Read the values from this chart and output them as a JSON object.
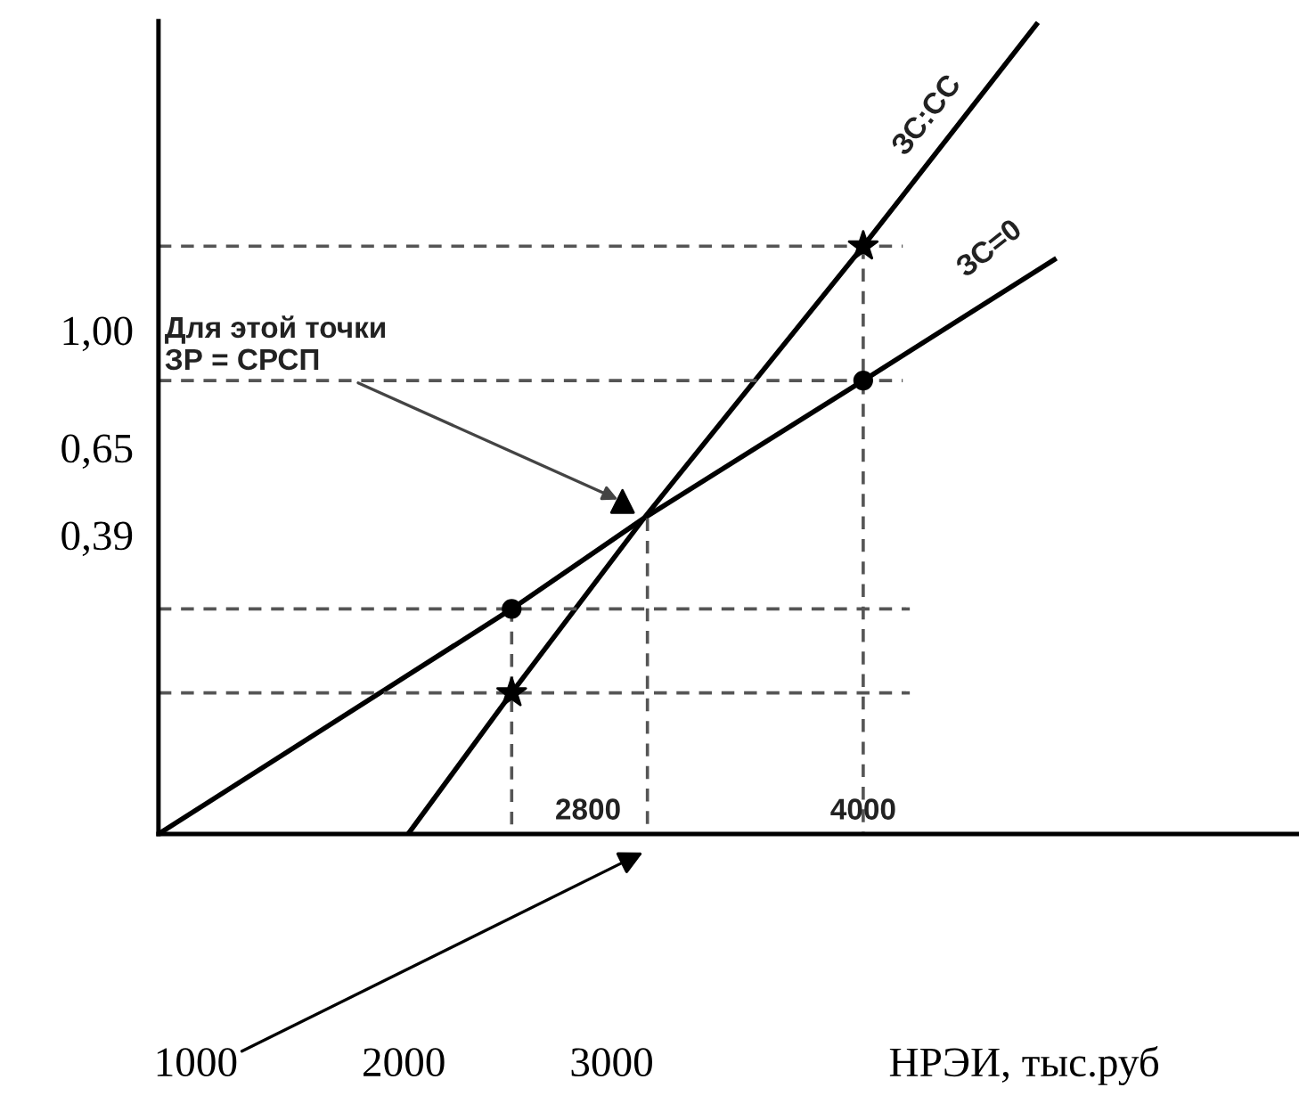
{
  "chart_data": {
    "type": "line",
    "xlabel": "НРЭИ, тыс.руб",
    "xlim": [
      820,
      6300
    ],
    "ylim": [
      -0.5,
      1.92
    ],
    "xticks": [
      1000,
      2000,
      3000
    ],
    "yticks": [
      {
        "value": 1.0,
        "label": "1,00"
      },
      {
        "value": 0.65,
        "label": "0,65"
      },
      {
        "value": 0.39,
        "label": "0,39"
      }
    ],
    "grid": false,
    "series": [
      {
        "color": "#000000",
        "marker": "none",
        "line_style": "solid",
        "x": [
          820,
          2519,
          3155,
          4210,
          5129
        ],
        "values": [
          -0.5,
          0.17,
          0.44,
          0.85,
          1.21
        ]
      },
      {
        "color": "#000000",
        "marker": "none",
        "line_style": "solid",
        "x": [
          2021,
          2519,
          3155,
          4210,
          5043
        ],
        "values": [
          -0.5,
          -0.08,
          0.44,
          1.25,
          1.91
        ]
      },
      {
        "type": "line",
        "color": "#555555",
        "marker": "none",
        "line_style": "dashed",
        "x": [
          820,
          4400
        ],
        "values": [
          1.25,
          1.25
        ]
      },
      {
        "type": "line",
        "color": "#555555",
        "marker": "none",
        "line_style": "dashed",
        "x": [
          820,
          4400
        ],
        "values": [
          0.85,
          0.85
        ]
      },
      {
        "type": "line",
        "color": "#555555",
        "marker": "none",
        "line_style": "dashed",
        "x": [
          820,
          4434
        ],
        "values": [
          0.17,
          0.17
        ]
      },
      {
        "type": "line",
        "color": "#555555",
        "marker": "none",
        "line_style": "dashed",
        "x": [
          820,
          4434
        ],
        "values": [
          -0.08,
          -0.08
        ]
      },
      {
        "type": "line",
        "color": "#555555",
        "marker": "none",
        "line_style": "dashed",
        "x": [
          2519,
          2519
        ],
        "values": [
          0.17,
          -0.5
        ]
      },
      {
        "type": "line",
        "color": "#555555",
        "marker": "none",
        "line_style": "dashed",
        "x": [
          3172,
          3172
        ],
        "values": [
          0.44,
          -0.5
        ]
      },
      {
        "type": "line",
        "color": "#555555",
        "marker": "none",
        "line_style": "dashed",
        "x": [
          4210,
          4210
        ],
        "values": [
          1.25,
          -0.5
        ]
      },
      {
        "type": "scatter",
        "color": "#000000",
        "marker": "circle",
        "x": [
          2519,
          4210
        ],
        "values": [
          0.17,
          0.85
        ]
      },
      {
        "type": "scatter",
        "color": "#000000",
        "marker": "star",
        "x": [
          2519,
          4210
        ],
        "values": [
          -0.08,
          1.25
        ]
      },
      {
        "type": "scatter",
        "color": "#000000",
        "marker": "triangle",
        "x": [
          3052
        ],
        "values": [
          0.49
        ]
      }
    ],
    "annotations": [
      {
        "text": "Для этой точки\nЗР = СРСП",
        "x": 3052,
        "y": 0.49
      },
      "ЗС:СС",
      "ЗС=0",
      "2800",
      "4000"
    ]
  }
}
